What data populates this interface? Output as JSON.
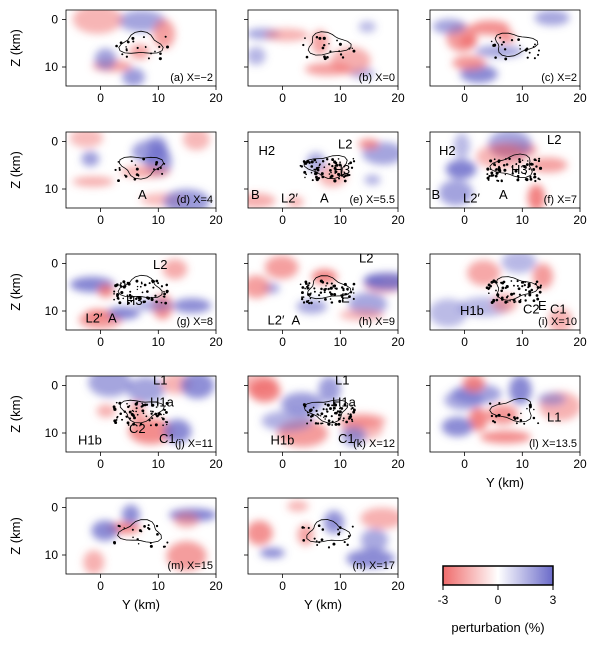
{
  "colors": {
    "negative": "#ef6b6b",
    "neutral": "#ffffff",
    "positive": "#6a6ac9",
    "outline": "#000000"
  },
  "axes": {
    "z_label": "Z (km)",
    "y_label": "Y (km)",
    "y_ticks": [
      "0",
      "10",
      "20"
    ],
    "z_ticks": [
      "0",
      "10"
    ],
    "y_range": [
      -6,
      20
    ],
    "z_range": [
      -2,
      14
    ]
  },
  "colorbar": {
    "ticks": [
      "-3",
      "0",
      "3"
    ],
    "label": "perturbation (%)",
    "range": [
      -3,
      3
    ]
  },
  "panels": [
    {
      "label": "(a) X=−2",
      "annotations": []
    },
    {
      "label": "(b) X=0",
      "annotations": []
    },
    {
      "label": "(c) X=2",
      "annotations": []
    },
    {
      "label": "(d) X=4",
      "annotations": [
        "A"
      ]
    },
    {
      "label": "(e) X=5.5",
      "annotations": [
        "H2",
        "L2",
        "H3",
        "A",
        "L2′",
        "B"
      ]
    },
    {
      "label": "(f) X=7",
      "annotations": [
        "L2",
        "H2",
        "H3",
        "A",
        "L2′",
        "B"
      ]
    },
    {
      "label": "(g) X=8",
      "annotations": [
        "L2",
        "H3",
        "L2′",
        "A"
      ]
    },
    {
      "label": "(h) X=9",
      "annotations": [
        "L2",
        "E",
        "L2′",
        "A"
      ]
    },
    {
      "label": "(i) X=10",
      "annotations": [
        "H1b",
        "C2",
        "E",
        "C1"
      ]
    },
    {
      "label": "(j) X=11",
      "annotations": [
        "L1",
        "H1a",
        "H1b",
        "C2",
        "C1"
      ]
    },
    {
      "label": "(k) X=12",
      "annotations": [
        "L1",
        "H1a",
        "H1b",
        "C1"
      ]
    },
    {
      "label": "(l) X=13.5",
      "annotations": [
        "L1"
      ]
    },
    {
      "label": "(m) X=15",
      "annotations": []
    },
    {
      "label": "(n) X=17",
      "annotations": []
    }
  ]
}
